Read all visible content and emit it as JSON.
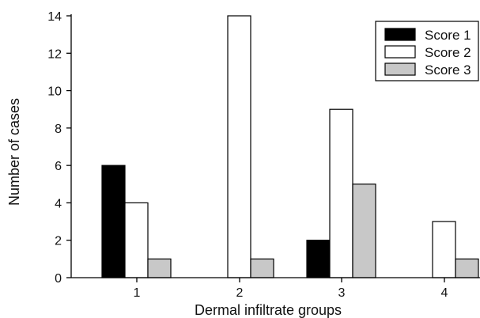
{
  "chart_data": {
    "type": "bar",
    "title": "",
    "xlabel": "Dermal infiltrate groups",
    "ylabel": "Number of cases",
    "categories": [
      "1",
      "2",
      "3",
      "4"
    ],
    "ylim": [
      0,
      14
    ],
    "yticks": [
      "0",
      "2",
      "4",
      "6",
      "8",
      "10",
      "12",
      "14"
    ],
    "grid": false,
    "legend_position": "top-right",
    "series": [
      {
        "name": "Score 1",
        "color": "#000000",
        "values": [
          6,
          0,
          2,
          0
        ]
      },
      {
        "name": "Score 2",
        "color": "#ffffff",
        "values": [
          4,
          14,
          9,
          3
        ]
      },
      {
        "name": "Score 3",
        "color": "#c8c8c8",
        "values": [
          1,
          1,
          5,
          1
        ]
      }
    ]
  }
}
